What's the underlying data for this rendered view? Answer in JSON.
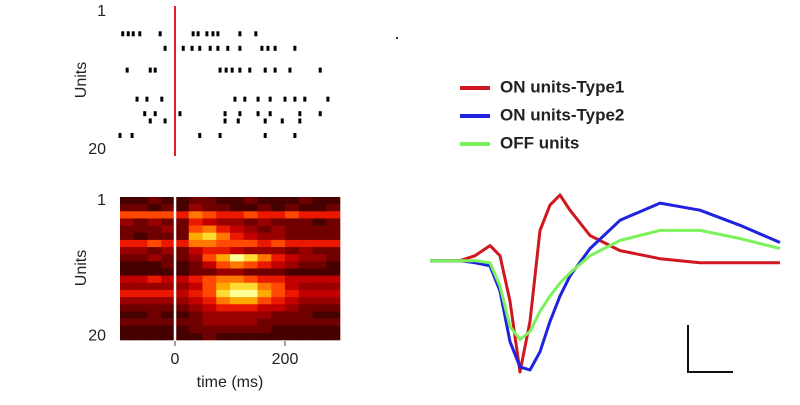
{
  "chart_data": [
    {
      "type": "raster",
      "ylabel": "Units",
      "ylim": [
        1,
        20
      ],
      "yticks": [
        1,
        20
      ],
      "xlim": [
        -100,
        300
      ],
      "marker_x": 0,
      "marker_color": "#e0202a",
      "color": "#000000",
      "x": [
        -95,
        -85,
        -76,
        -64,
        -27,
        33,
        42,
        58,
        69,
        78,
        118,
        147,
        -18,
        15,
        31,
        45,
        64,
        78,
        96,
        118,
        158,
        169,
        182,
        218,
        -87,
        -45,
        -36,
        82,
        93,
        104,
        118,
        136,
        164,
        182,
        209,
        264,
        -69,
        -51,
        -24,
        109,
        127,
        151,
        173,
        200,
        218,
        236,
        278,
        -55,
        -36,
        9,
        91,
        118,
        151,
        173,
        227,
        264,
        -45,
        -18,
        91,
        115,
        164,
        195,
        227,
        -100,
        -78,
        45,
        82,
        164,
        218
      ],
      "y": [
        4,
        4,
        4,
        4,
        4,
        4,
        4,
        4,
        4,
        4,
        4,
        4,
        6,
        6,
        6,
        6,
        6,
        6,
        6,
        6,
        6,
        6,
        6,
        6,
        9,
        9,
        9,
        9,
        9,
        9,
        9,
        9,
        9,
        9,
        9,
        9,
        13,
        13,
        13,
        13,
        13,
        13,
        13,
        13,
        13,
        13,
        13,
        15,
        15,
        15,
        15,
        15,
        15,
        15,
        15,
        15,
        16,
        16,
        16,
        16,
        16,
        16,
        16,
        18,
        18,
        18,
        18,
        18,
        18
      ]
    },
    {
      "type": "heatmap",
      "ylabel": "Units",
      "xlabel": "time (ms)",
      "xlim": [
        -100,
        300
      ],
      "xticks": [
        0,
        200
      ],
      "ylim": [
        0.5,
        20.5
      ],
      "yticks": [
        1,
        20
      ],
      "marker_x": 0,
      "marker_color": "#ffffff",
      "bins": [
        -100,
        -75,
        -50,
        -25,
        0,
        25,
        50,
        75,
        100,
        125,
        150,
        175,
        200,
        225,
        250,
        275,
        300
      ],
      "values": [
        [
          1,
          1,
          2,
          1,
          1,
          2,
          2,
          1,
          1,
          2,
          1,
          1,
          1,
          2,
          1,
          1
        ],
        [
          2,
          2,
          1,
          2,
          1,
          3,
          2,
          2,
          1,
          1,
          2,
          1,
          2,
          1,
          1,
          2
        ],
        [
          6,
          6,
          6,
          6,
          5,
          7,
          6,
          5,
          5,
          6,
          5,
          5,
          6,
          5,
          5,
          5
        ],
        [
          3,
          2,
          3,
          2,
          2,
          5,
          4,
          3,
          3,
          2,
          3,
          2,
          2,
          2,
          1,
          2
        ],
        [
          2,
          2,
          2,
          3,
          2,
          6,
          7,
          5,
          4,
          3,
          2,
          3,
          2,
          2,
          2,
          2
        ],
        [
          2,
          1,
          2,
          2,
          2,
          8,
          9,
          7,
          5,
          4,
          3,
          3,
          2,
          2,
          2,
          2
        ],
        [
          5,
          5,
          6,
          5,
          5,
          7,
          7,
          6,
          6,
          6,
          5,
          6,
          5,
          5,
          5,
          5
        ],
        [
          3,
          3,
          2,
          3,
          2,
          4,
          5,
          5,
          4,
          3,
          3,
          3,
          2,
          3,
          2,
          2
        ],
        [
          2,
          2,
          3,
          2,
          2,
          3,
          6,
          8,
          10,
          9,
          7,
          5,
          4,
          3,
          3,
          2
        ],
        [
          1,
          1,
          1,
          2,
          1,
          2,
          4,
          6,
          7,
          6,
          5,
          4,
          3,
          2,
          2,
          1
        ],
        [
          1,
          1,
          1,
          1,
          1,
          2,
          2,
          3,
          3,
          2,
          2,
          2,
          1,
          1,
          1,
          1
        ],
        [
          4,
          4,
          5,
          4,
          4,
          5,
          6,
          7,
          7,
          6,
          5,
          5,
          4,
          4,
          4,
          4
        ],
        [
          3,
          3,
          3,
          3,
          3,
          4,
          6,
          8,
          9,
          9,
          7,
          6,
          4,
          3,
          3,
          3
        ],
        [
          5,
          5,
          5,
          5,
          4,
          5,
          6,
          9,
          10,
          10,
          8,
          6,
          5,
          4,
          4,
          4
        ],
        [
          3,
          3,
          3,
          3,
          3,
          4,
          5,
          7,
          8,
          8,
          6,
          5,
          4,
          3,
          3,
          3
        ],
        [
          2,
          2,
          2,
          2,
          2,
          3,
          4,
          5,
          5,
          5,
          4,
          4,
          3,
          2,
          2,
          2
        ],
        [
          1,
          1,
          2,
          1,
          1,
          2,
          3,
          3,
          3,
          3,
          3,
          2,
          2,
          2,
          1,
          1
        ],
        [
          2,
          2,
          2,
          2,
          2,
          2,
          3,
          3,
          3,
          3,
          2,
          2,
          2,
          2,
          2,
          2
        ],
        [
          1,
          1,
          1,
          1,
          1,
          2,
          2,
          2,
          2,
          2,
          2,
          1,
          1,
          1,
          1,
          1
        ],
        [
          1,
          1,
          1,
          1,
          1,
          1,
          2,
          1,
          1,
          1,
          1,
          1,
          1,
          1,
          1,
          1
        ]
      ]
    },
    {
      "type": "line",
      "x": [
        0,
        3,
        4.5,
        6,
        7,
        8,
        9,
        10,
        11,
        12,
        13,
        14,
        16,
        19,
        23,
        27,
        31,
        35
      ],
      "series": [
        {
          "name": "ON units-Type1",
          "color": "#d0161e",
          "values": [
            0,
            0,
            0.05,
            0.15,
            0.05,
            -0.4,
            -1.1,
            -0.6,
            0.3,
            0.55,
            0.65,
            0.5,
            0.25,
            0.1,
            0.02,
            -0.02,
            -0.02,
            -0.02
          ]
        },
        {
          "name": "ON units-Type2",
          "color": "#1f23e0",
          "values": [
            0,
            0,
            -0.02,
            -0.05,
            -0.3,
            -0.8,
            -1.05,
            -1.08,
            -0.9,
            -0.6,
            -0.35,
            -0.15,
            0.12,
            0.4,
            0.57,
            0.5,
            0.35,
            0.18
          ]
        },
        {
          "name": "OFF units",
          "color": "#7cf25a",
          "values": [
            0,
            0,
            0,
            -0.02,
            -0.25,
            -0.65,
            -0.78,
            -0.7,
            -0.5,
            -0.35,
            -0.22,
            -0.12,
            0.05,
            0.2,
            0.3,
            0.3,
            0.22,
            0.12
          ]
        }
      ]
    }
  ]
}
